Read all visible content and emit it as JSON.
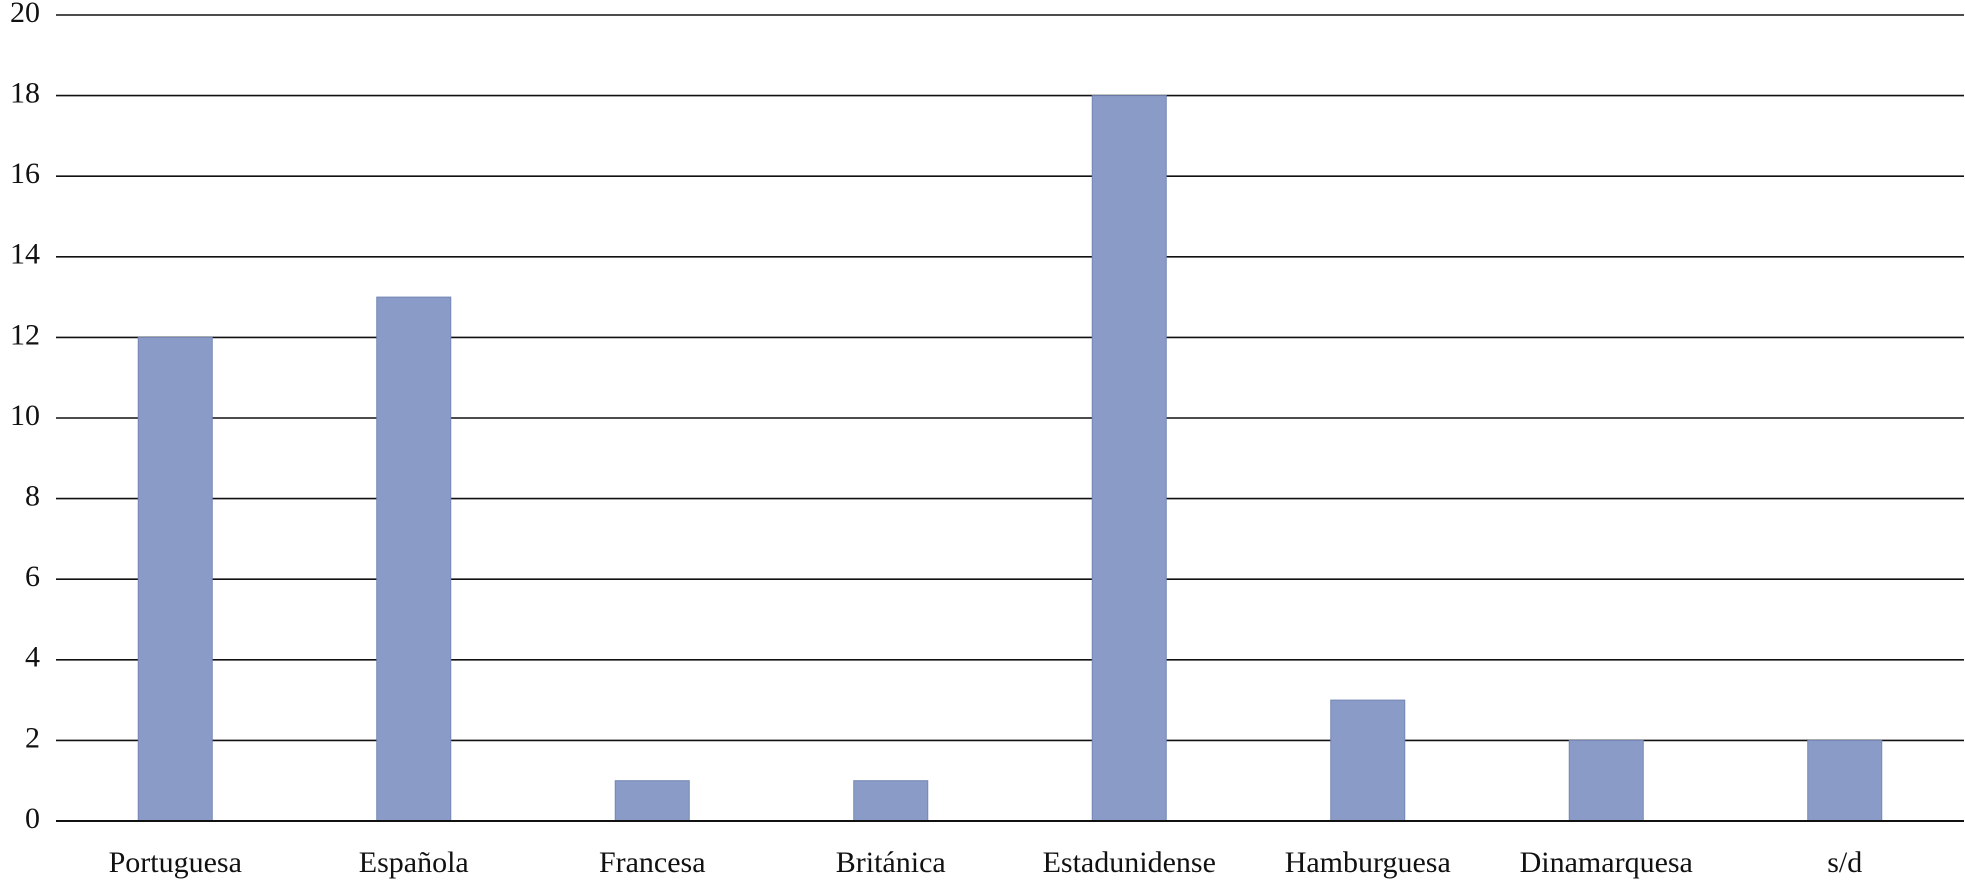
{
  "chart_data": {
    "type": "bar",
    "categories": [
      "Portuguesa",
      "Española",
      "Francesa",
      "Británica",
      "Estadunidense",
      "Hamburguesa",
      "Dinamarquesa",
      "s/d"
    ],
    "values": [
      12,
      13,
      1,
      1,
      18,
      3,
      2,
      2
    ],
    "color": "#8a9bc7",
    "ylim": [
      0,
      20
    ],
    "yticks": [
      0,
      2,
      4,
      6,
      8,
      10,
      12,
      14,
      16,
      18,
      20
    ],
    "grid": true
  }
}
